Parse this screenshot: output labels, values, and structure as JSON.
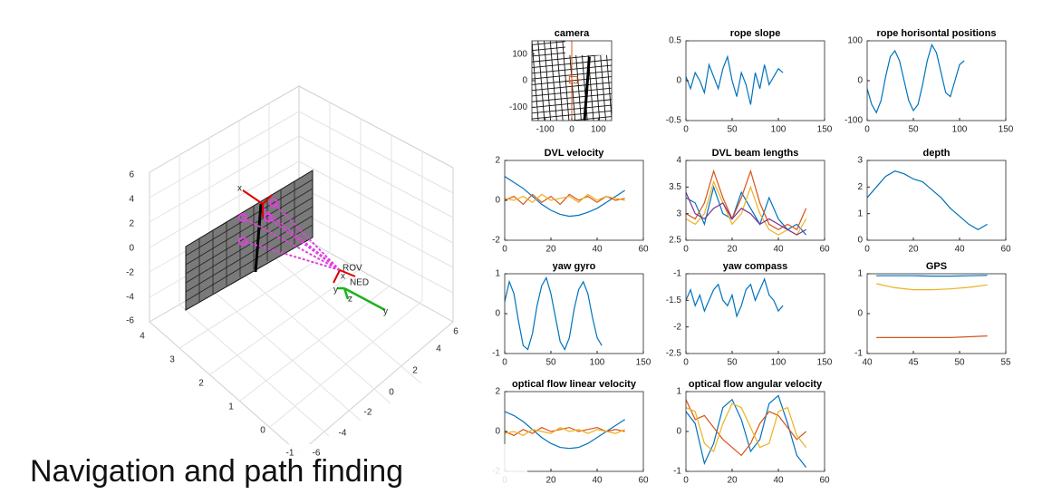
{
  "caption": "Navigation and path finding",
  "scene3d": {
    "zticks": [
      "6",
      "4",
      "2",
      "0",
      "-2",
      "-4",
      "-6"
    ],
    "xticks": [
      "4",
      "3",
      "2",
      "1",
      "0",
      "-1"
    ],
    "yticks": [
      "6",
      "4",
      "2",
      "0",
      "-2",
      "-4",
      "-6"
    ],
    "labels": [
      "ROV",
      "NED",
      "x",
      "y",
      "z",
      "y",
      "x"
    ]
  },
  "chart_data": [
    {
      "type": "image",
      "title": "camera",
      "xlim": [
        -150,
        150
      ],
      "xticks": [
        -100,
        0,
        100
      ],
      "ylim": [
        -150,
        150
      ],
      "yticks": [
        -100,
        0,
        100
      ]
    },
    {
      "type": "line",
      "title": "rope slope",
      "xlim": [
        0,
        150
      ],
      "xticks": [
        0,
        50,
        100,
        150
      ],
      "ylim": [
        -0.5,
        0.5
      ],
      "yticks": [
        -0.5,
        0,
        0.5
      ],
      "x": [
        0,
        5,
        10,
        15,
        20,
        25,
        30,
        35,
        40,
        45,
        50,
        55,
        60,
        65,
        70,
        75,
        80,
        85,
        90,
        95,
        100,
        105
      ],
      "series": [
        {
          "color": "#0072bd",
          "values": [
            0.05,
            -0.1,
            0.1,
            0.0,
            -0.15,
            0.2,
            0.05,
            -0.1,
            0.15,
            0.3,
            0.0,
            -0.2,
            0.1,
            -0.05,
            -0.3,
            0.1,
            -0.1,
            0.2,
            -0.05,
            0.05,
            0.15,
            0.1
          ]
        }
      ]
    },
    {
      "type": "line",
      "title": "rope horisontal positions",
      "xlim": [
        0,
        150
      ],
      "xticks": [
        0,
        50,
        100,
        150
      ],
      "ylim": [
        -100,
        100
      ],
      "yticks": [
        -100,
        0,
        100
      ],
      "x": [
        0,
        5,
        10,
        15,
        20,
        25,
        30,
        35,
        40,
        45,
        50,
        55,
        60,
        65,
        70,
        75,
        80,
        85,
        90,
        95,
        100,
        105
      ],
      "series": [
        {
          "color": "#0072bd",
          "values": [
            -20,
            -60,
            -80,
            -50,
            10,
            60,
            75,
            50,
            0,
            -50,
            -75,
            -60,
            -10,
            50,
            90,
            70,
            20,
            -30,
            -40,
            0,
            40,
            50
          ]
        }
      ]
    },
    {
      "type": "line",
      "title": "DVL velocity",
      "xlim": [
        0,
        60
      ],
      "xticks": [
        0,
        20,
        40,
        60
      ],
      "ylim": [
        -2,
        2
      ],
      "yticks": [
        -2,
        0,
        2
      ],
      "x": [
        0,
        4,
        8,
        12,
        16,
        20,
        24,
        28,
        32,
        36,
        40,
        44,
        48,
        52
      ],
      "series": [
        {
          "color": "#0072bd",
          "values": [
            1.2,
            0.9,
            0.6,
            0.2,
            -0.2,
            -0.5,
            -0.7,
            -0.8,
            -0.75,
            -0.6,
            -0.4,
            -0.1,
            0.2,
            0.5
          ]
        },
        {
          "color": "#d95319",
          "values": [
            0,
            0.2,
            -0.2,
            0.3,
            -0.1,
            0.2,
            -0.2,
            0.3,
            0,
            0.2,
            -0.1,
            0.2,
            0,
            0.1
          ]
        },
        {
          "color": "#edb120",
          "values": [
            0.1,
            0,
            0.2,
            -0.1,
            0.3,
            0,
            0.1,
            0.2,
            -0.1,
            0.3,
            0,
            0.2,
            0.1,
            0
          ]
        }
      ]
    },
    {
      "type": "line",
      "title": "DVL beam lengths",
      "xlim": [
        0,
        60
      ],
      "xticks": [
        0,
        20,
        40,
        60
      ],
      "ylim": [
        2.5,
        4
      ],
      "yticks": [
        2.5,
        3,
        3.5,
        4
      ],
      "x": [
        0,
        4,
        8,
        12,
        16,
        20,
        24,
        28,
        32,
        36,
        40,
        44,
        48,
        52
      ],
      "series": [
        {
          "color": "#0072bd",
          "values": [
            3.3,
            3.2,
            2.8,
            3.5,
            3.0,
            2.9,
            3.4,
            3.1,
            2.8,
            3.3,
            2.9,
            2.7,
            2.8,
            2.6
          ]
        },
        {
          "color": "#d95319",
          "values": [
            3.0,
            2.9,
            3.2,
            3.8,
            3.3,
            2.9,
            3.3,
            3.8,
            3.2,
            2.8,
            2.7,
            2.8,
            2.7,
            3.1
          ]
        },
        {
          "color": "#edb120",
          "values": [
            2.9,
            2.8,
            3.0,
            3.6,
            3.2,
            2.8,
            3.0,
            3.5,
            3.0,
            2.7,
            2.6,
            2.7,
            2.6,
            2.9
          ]
        },
        {
          "color": "#7e2f8e",
          "values": [
            3.4,
            3.0,
            2.9,
            3.1,
            3.2,
            2.9,
            3.1,
            3.0,
            2.8,
            2.9,
            2.8,
            2.7,
            2.6,
            2.7
          ]
        }
      ]
    },
    {
      "type": "line",
      "title": "depth",
      "xlim": [
        0,
        60
      ],
      "xticks": [
        0,
        20,
        40,
        60
      ],
      "ylim": [
        0,
        3
      ],
      "yticks": [
        0,
        1,
        2,
        3
      ],
      "x": [
        0,
        4,
        8,
        12,
        16,
        20,
        24,
        28,
        32,
        36,
        40,
        44,
        48,
        52
      ],
      "series": [
        {
          "color": "#0072bd",
          "values": [
            1.6,
            2.0,
            2.4,
            2.6,
            2.5,
            2.3,
            2.2,
            1.9,
            1.6,
            1.2,
            0.9,
            0.6,
            0.4,
            0.6
          ]
        }
      ]
    },
    {
      "type": "line",
      "title": "yaw gyro",
      "xlim": [
        0,
        150
      ],
      "xticks": [
        0,
        50,
        100,
        150
      ],
      "ylim": [
        -1,
        1
      ],
      "yticks": [
        -1,
        0,
        1
      ],
      "x": [
        0,
        5,
        10,
        15,
        20,
        25,
        30,
        35,
        40,
        45,
        50,
        55,
        60,
        65,
        70,
        75,
        80,
        85,
        90,
        95,
        100,
        105
      ],
      "series": [
        {
          "color": "#0072bd",
          "values": [
            0.3,
            0.8,
            0.5,
            -0.2,
            -0.8,
            -0.9,
            -0.5,
            0.2,
            0.7,
            0.9,
            0.5,
            -0.1,
            -0.7,
            -0.9,
            -0.6,
            0.1,
            0.6,
            0.8,
            0.5,
            -0.1,
            -0.6,
            -0.8
          ]
        }
      ]
    },
    {
      "type": "line",
      "title": "yaw compass",
      "xlim": [
        0,
        150
      ],
      "xticks": [
        0,
        50,
        100,
        150
      ],
      "ylim": [
        -2.5,
        -1
      ],
      "yticks": [
        -2.5,
        -2,
        -1.5,
        -1
      ],
      "x": [
        0,
        5,
        10,
        15,
        20,
        25,
        30,
        35,
        40,
        45,
        50,
        55,
        60,
        65,
        70,
        75,
        80,
        85,
        90,
        95,
        100,
        105
      ],
      "series": [
        {
          "color": "#0072bd",
          "values": [
            -1.5,
            -1.3,
            -1.6,
            -1.4,
            -1.7,
            -1.5,
            -1.3,
            -1.2,
            -1.5,
            -1.6,
            -1.4,
            -1.8,
            -1.6,
            -1.3,
            -1.2,
            -1.5,
            -1.3,
            -1.1,
            -1.4,
            -1.5,
            -1.7,
            -1.6
          ]
        }
      ]
    },
    {
      "type": "line",
      "title": "GPS",
      "xlim": [
        40,
        55
      ],
      "xticks": [
        40,
        45,
        50,
        55
      ],
      "ylim": [
        -1,
        1
      ],
      "yticks": [
        -1,
        0,
        1
      ],
      "x": [
        41,
        43,
        45,
        47,
        49,
        51,
        53
      ],
      "series": [
        {
          "color": "#0072bd",
          "values": [
            0.95,
            0.95,
            0.95,
            0.94,
            0.94,
            0.95,
            0.96
          ]
        },
        {
          "color": "#edb120",
          "values": [
            0.75,
            0.65,
            0.6,
            0.6,
            0.62,
            0.66,
            0.72
          ]
        },
        {
          "color": "#d95319",
          "values": [
            -0.6,
            -0.6,
            -0.6,
            -0.6,
            -0.6,
            -0.58,
            -0.56
          ]
        }
      ]
    },
    {
      "type": "line",
      "title": "optical flow linear velocity",
      "xlim": [
        0,
        60
      ],
      "xticks": [
        0,
        20,
        40,
        60
      ],
      "ylim": [
        -2,
        2
      ],
      "yticks": [
        -2,
        0,
        2
      ],
      "x": [
        0,
        4,
        8,
        12,
        16,
        20,
        24,
        28,
        32,
        36,
        40,
        44,
        48,
        52
      ],
      "series": [
        {
          "color": "#0072bd",
          "values": [
            1.0,
            0.8,
            0.5,
            0.1,
            -0.3,
            -0.6,
            -0.8,
            -0.85,
            -0.8,
            -0.6,
            -0.3,
            0,
            0.3,
            0.6
          ]
        },
        {
          "color": "#d95319",
          "values": [
            0,
            -0.2,
            0.1,
            -0.1,
            0.2,
            0,
            0.1,
            0.2,
            0,
            0.1,
            0.2,
            0,
            0.1,
            0
          ]
        },
        {
          "color": "#edb120",
          "values": [
            -0.1,
            0,
            -0.2,
            0.1,
            0,
            -0.1,
            0.2,
            0,
            0.1,
            -0.1,
            0.1,
            0,
            -0.1,
            0.1
          ]
        }
      ]
    },
    {
      "type": "line",
      "title": "optical flow angular velocity",
      "xlim": [
        0,
        60
      ],
      "xticks": [
        0,
        20,
        40,
        60
      ],
      "ylim": [
        -1,
        1
      ],
      "yticks": [
        -1,
        0,
        1
      ],
      "x": [
        0,
        4,
        8,
        12,
        16,
        20,
        24,
        28,
        32,
        36,
        40,
        44,
        48,
        52
      ],
      "series": [
        {
          "color": "#0072bd",
          "values": [
            0.5,
            0.2,
            -0.8,
            -0.3,
            0.6,
            0.8,
            0.3,
            -0.5,
            -0.2,
            0.7,
            0.9,
            0.2,
            -0.6,
            -0.9
          ]
        },
        {
          "color": "#d95319",
          "values": [
            0.8,
            0.3,
            0.4,
            0.1,
            -0.2,
            -0.4,
            -0.6,
            -0.3,
            0.2,
            0.5,
            0.4,
            0.1,
            -0.2,
            0
          ]
        },
        {
          "color": "#edb120",
          "values": [
            0.6,
            0.5,
            -0.3,
            -0.5,
            0.2,
            0.7,
            0.6,
            0.1,
            -0.4,
            -0.3,
            0.5,
            0.6,
            -0.1,
            -0.4
          ]
        }
      ]
    }
  ]
}
